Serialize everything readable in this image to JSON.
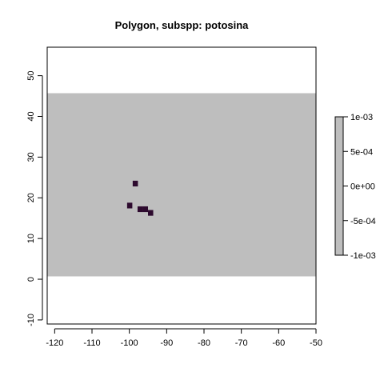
{
  "map": {
    "title": "Polygon, subspp: potosina",
    "x_ticks": [
      "-120",
      "-110",
      "-100",
      "-90",
      "-80",
      "-70",
      "-60",
      "-50"
    ],
    "y_ticks": [
      "-10",
      "0",
      "10",
      "20",
      "30",
      "40",
      "50"
    ],
    "x_range": [
      -122,
      -50
    ],
    "y_range": [
      -11,
      57
    ],
    "raster_extent": {
      "xmin": -122,
      "xmax": -50,
      "ymin": 0.7,
      "ymax": 45.7
    },
    "background_color": "#bebebe",
    "presence_color": "#2d0a2e",
    "presence_cells": [
      {
        "x": -98.4,
        "y": 23.5
      },
      {
        "x": -99.9,
        "y": 18.1
      },
      {
        "x": -97.1,
        "y": 17.2
      },
      {
        "x": -95.7,
        "y": 17.2
      },
      {
        "x": -94.3,
        "y": 16.3
      }
    ],
    "cell_size": 1.4
  },
  "legend": {
    "labels": [
      "1e-03",
      "5e-04",
      "0e+00",
      "-5e-04",
      "-1e-03"
    ],
    "range": [
      -0.001,
      0.001
    ],
    "fill_color": "#bebebe"
  }
}
